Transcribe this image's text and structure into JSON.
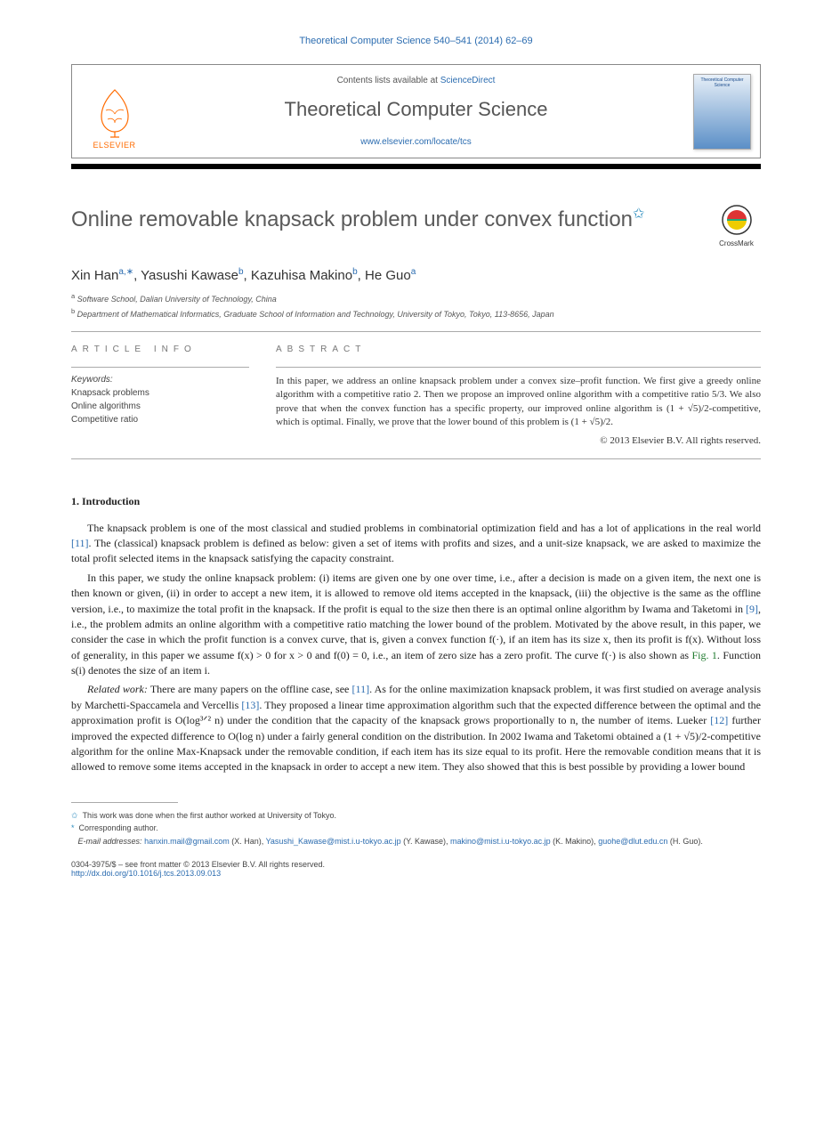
{
  "journal_ref": "Theoretical Computer Science 540–541 (2014) 62–69",
  "header": {
    "contents_prefix": "Contents lists available at ",
    "contents_link": "ScienceDirect",
    "journal_name": "Theoretical Computer Science",
    "journal_url": "www.elsevier.com/locate/tcs",
    "publisher": "ELSEVIER",
    "cover_title": "Theoretical Computer Science"
  },
  "colors": {
    "link": "#2b6cb0",
    "title": "#5a5a5a",
    "publisher": "#ff6b00",
    "cite": "#2b6cb0",
    "figref": "#1f7a2e",
    "body": "#222222",
    "muted": "#555555",
    "background": "#ffffff"
  },
  "paper": {
    "title": "Online removable knapsack problem under convex function",
    "star_note_marker": "✩",
    "crossmark": "CrossMark",
    "authors_html": "Xin Han<sup>a,∗</sup>, Yasushi Kawase<sup>b</sup>, Kazuhisa Makino<sup>b</sup>, He Guo<sup>a</sup>",
    "affiliations": [
      {
        "marker": "a",
        "text": "Software School, Dalian University of Technology, China"
      },
      {
        "marker": "b",
        "text": "Department of Mathematical Informatics, Graduate School of Information and Technology, University of Tokyo, Tokyo, 113-8656, Japan"
      }
    ]
  },
  "article_info": {
    "heading": "article info",
    "keywords_label": "Keywords:",
    "keywords": [
      "Knapsack problems",
      "Online algorithms",
      "Competitive ratio"
    ]
  },
  "abstract": {
    "heading": "abstract",
    "text": "In this paper, we address an online knapsack problem under a convex size–profit function. We first give a greedy online algorithm with a competitive ratio 2. Then we propose an improved online algorithm with a competitive ratio 5/3. We also prove that when the convex function has a specific property, our improved online algorithm is (1 + √5)/2-competitive, which is optimal. Finally, we prove that the lower bound of this problem is (1 + √5)/2.",
    "copyright": "© 2013 Elsevier B.V. All rights reserved."
  },
  "section1": {
    "heading": "1. Introduction",
    "p1_pre": "The knapsack problem is one of the most classical and studied problems in combinatorial optimization field and has a lot of applications in the real world ",
    "p1_cite": "[11]",
    "p1_post": ". The (classical) knapsack problem is defined as below: given a set of items with profits and sizes, and a unit-size knapsack, we are asked to maximize the total profit selected items in the knapsack satisfying the capacity constraint.",
    "p2_a": "In this paper, we study the online knapsack problem: (i) items are given one by one over time, i.e., after a decision is made on a given item, the next one is then known or given, (ii) in order to accept a new item, it is allowed to remove old items accepted in the knapsack, (iii) the objective is the same as the offline version, i.e., to maximize the total profit in the knapsack. If the profit is equal to the size then there is an optimal online algorithm by Iwama and Taketomi in ",
    "p2_cite1": "[9]",
    "p2_b": ", i.e., the problem admits an online algorithm with a competitive ratio matching the lower bound of the problem. Motivated by the above result, in this paper, we consider the case in which the profit function is a convex curve, that is, given a convex function f(·), if an item has its size x, then its profit is f(x). Without loss of generality, in this paper we assume f(x) > 0 for x > 0 and f(0) = 0, i.e., an item of zero size has a zero profit. The curve f(·) is also shown as ",
    "p2_fig": "Fig. 1",
    "p2_c": ". Function s(i) denotes the size of an item i.",
    "related_label": "Related work:",
    "p3_a": " There are many papers on the offline case, see ",
    "p3_cite1": "[11]",
    "p3_b": ". As for the online maximization knapsack problem, it was first studied on average analysis by Marchetti-Spaccamela and Vercellis ",
    "p3_cite2": "[13]",
    "p3_c": ". They proposed a linear time approximation algorithm such that the expected difference between the optimal and the approximation profit is O(log³ᐟ² n) under the condition that the capacity of the knapsack grows proportionally to n, the number of items. Lueker ",
    "p3_cite3": "[12]",
    "p3_d": " further improved the expected difference to O(log n) under a fairly general condition on the distribution. In 2002 Iwama and Taketomi obtained a (1 + √5)/2-competitive algorithm for the online Max-Knapsack under the removable condition, if each item has its size equal to its profit. Here the removable condition means that it is allowed to remove some items accepted in the knapsack in order to accept a new item. They also showed that this is best possible by providing a lower bound"
  },
  "footnotes": {
    "f1_marker": "✩",
    "f1": "This work was done when the first author worked at University of Tokyo.",
    "f2_marker": "*",
    "f2": "Corresponding author.",
    "emails_label": "E-mail addresses:",
    "emails": [
      {
        "addr": "hanxin.mail@gmail.com",
        "who": "(X. Han)"
      },
      {
        "addr": "Yasushi_Kawase@mist.i.u-tokyo.ac.jp",
        "who": "(Y. Kawase)"
      },
      {
        "addr": "makino@mist.i.u-tokyo.ac.jp",
        "who": "(K. Makino)"
      },
      {
        "addr": "guohe@dlut.edu.cn",
        "who": "(H. Guo)"
      }
    ]
  },
  "footer": {
    "issn_line": "0304-3975/$ – see front matter © 2013 Elsevier B.V. All rights reserved.",
    "doi": "http://dx.doi.org/10.1016/j.tcs.2013.09.013"
  },
  "typography": {
    "title_fontsize": 24,
    "author_fontsize": 15,
    "body_fontsize": 12,
    "abstract_fontsize": 11,
    "footnote_fontsize": 9
  }
}
